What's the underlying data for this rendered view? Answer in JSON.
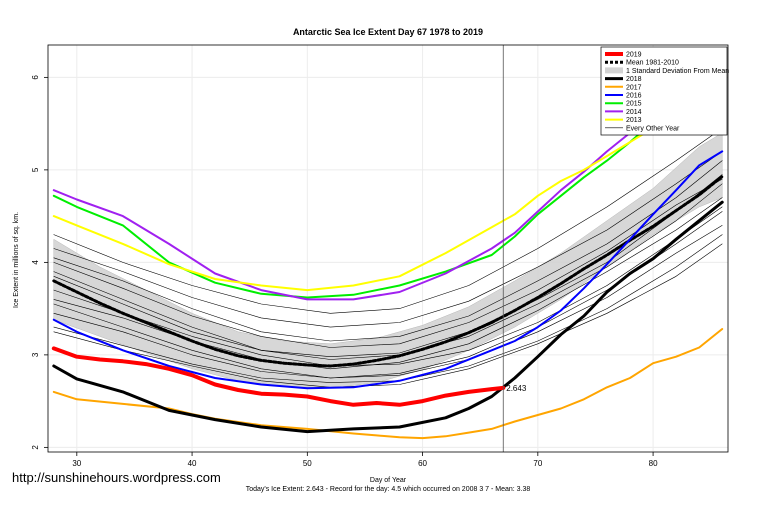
{
  "watermark": "http://sunshinehours.wordpress.com",
  "chart_data": {
    "type": "line",
    "title": "Antarctic Sea Ice Extent Day 67 1978 to 2019",
    "xlabel": "Day of Year",
    "ylabel": "Ice Extent in millions of sq. km.",
    "footer": "Today's Ice Extent: 2.643  - Record for the day: 4.5 which occurred on 2008 3 7  - Mean: 3.38",
    "xlim": [
      27.5,
      86.5
    ],
    "ylim": [
      1.95,
      6.35
    ],
    "x_ticks": [
      "30",
      "40",
      "50",
      "60",
      "70",
      "80"
    ],
    "y_ticks": [
      "2",
      "3",
      "4",
      "5",
      "6"
    ],
    "current_day": 67,
    "current_value_label": "2.643",
    "legend_position": "top-right",
    "legend": [
      {
        "label": "2019",
        "color": "#ff0000",
        "style": "solid",
        "width": 4
      },
      {
        "label": "Mean 1981-2010",
        "color": "#000000",
        "style": "dashed",
        "width": 3
      },
      {
        "label": "1 Standard Deviation From Mean",
        "color": "#d3d3d3",
        "style": "band",
        "width": 8
      },
      {
        "label": "2018",
        "color": "#000000",
        "style": "solid",
        "width": 3
      },
      {
        "label": "2017",
        "color": "#ffa500",
        "style": "solid",
        "width": 2
      },
      {
        "label": "2016",
        "color": "#0000ff",
        "style": "solid",
        "width": 2
      },
      {
        "label": "2015",
        "color": "#00ee00",
        "style": "solid",
        "width": 2
      },
      {
        "label": "2014",
        "color": "#a020f0",
        "style": "solid",
        "width": 2
      },
      {
        "label": "2013",
        "color": "#ffff00",
        "style": "solid",
        "width": 2
      },
      {
        "label": "Every Other Year",
        "color": "#000000",
        "style": "thin",
        "width": 0.6
      }
    ],
    "std_band": {
      "x": [
        28,
        32,
        36,
        40,
        44,
        48,
        52,
        56,
        60,
        64,
        68,
        72,
        76,
        80,
        84,
        86
      ],
      "upper": [
        4.25,
        3.95,
        3.7,
        3.45,
        3.25,
        3.15,
        3.12,
        3.18,
        3.32,
        3.52,
        3.8,
        4.1,
        4.45,
        4.8,
        5.25,
        5.4
      ],
      "lower": [
        3.38,
        3.2,
        3.02,
        2.85,
        2.72,
        2.66,
        2.64,
        2.7,
        2.84,
        3.05,
        3.3,
        3.6,
        3.95,
        4.3,
        4.6,
        4.7
      ]
    },
    "series": [
      {
        "name": "Every Other Year",
        "color": "#000000",
        "width": 0.6,
        "x": [
          28,
          34,
          40,
          46,
          52,
          58,
          64,
          70,
          76,
          82,
          86
        ],
        "y": [
          3.9,
          3.6,
          3.3,
          3.05,
          2.95,
          3.0,
          3.2,
          3.55,
          3.95,
          4.45,
          4.85
        ]
      },
      {
        "name": "Every Other Year",
        "color": "#000000",
        "width": 0.6,
        "x": [
          28,
          34,
          40,
          46,
          52,
          58,
          64,
          70,
          76,
          82,
          86
        ],
        "y": [
          3.55,
          3.3,
          3.05,
          2.85,
          2.75,
          2.8,
          2.98,
          3.3,
          3.7,
          4.2,
          4.55
        ]
      },
      {
        "name": "Every Other Year",
        "color": "#000000",
        "width": 0.6,
        "x": [
          28,
          34,
          40,
          46,
          52,
          58,
          64,
          70,
          76,
          82,
          86
        ],
        "y": [
          4.05,
          3.8,
          3.5,
          3.25,
          3.15,
          3.2,
          3.42,
          3.8,
          4.2,
          4.7,
          5.1
        ]
      },
      {
        "name": "Every Other Year",
        "color": "#000000",
        "width": 0.6,
        "x": [
          28,
          34,
          40,
          46,
          52,
          58,
          64,
          70,
          76,
          82,
          86
        ],
        "y": [
          3.3,
          3.1,
          2.9,
          2.75,
          2.7,
          2.72,
          2.88,
          3.15,
          3.5,
          3.95,
          4.3
        ]
      },
      {
        "name": "Every Other Year",
        "color": "#000000",
        "width": 0.6,
        "x": [
          28,
          34,
          40,
          46,
          52,
          58,
          64,
          70,
          76,
          82,
          86
        ],
        "y": [
          4.3,
          4.0,
          3.75,
          3.55,
          3.45,
          3.5,
          3.75,
          4.15,
          4.6,
          5.1,
          5.45
        ]
      },
      {
        "name": "Every Other Year",
        "color": "#000000",
        "width": 0.6,
        "x": [
          28,
          34,
          40,
          46,
          52,
          58,
          64,
          70,
          76,
          82,
          86
        ],
        "y": [
          3.7,
          3.45,
          3.2,
          3.0,
          2.88,
          2.9,
          3.05,
          3.35,
          3.75,
          4.25,
          4.6
        ]
      },
      {
        "name": "Every Other Year",
        "color": "#000000",
        "width": 0.6,
        "x": [
          28,
          34,
          40,
          46,
          52,
          58,
          64,
          70,
          76,
          82,
          86
        ],
        "y": [
          3.45,
          3.25,
          3.0,
          2.82,
          2.75,
          2.78,
          2.95,
          3.25,
          3.62,
          4.1,
          4.4
        ]
      },
      {
        "name": "Every Other Year",
        "color": "#000000",
        "width": 0.6,
        "x": [
          28,
          34,
          40,
          46,
          52,
          58,
          64,
          70,
          76,
          82,
          86
        ],
        "y": [
          4.15,
          3.9,
          3.62,
          3.4,
          3.3,
          3.35,
          3.58,
          3.95,
          4.35,
          4.85,
          5.2
        ]
      },
      {
        "name": "Every Other Year",
        "color": "#000000",
        "width": 0.6,
        "x": [
          28,
          34,
          40,
          46,
          52,
          58,
          64,
          70,
          76,
          82,
          86
        ],
        "y": [
          3.85,
          3.55,
          3.25,
          3.05,
          2.98,
          3.02,
          3.25,
          3.6,
          4.0,
          4.55,
          4.95
        ]
      },
      {
        "name": "Every Other Year",
        "color": "#000000",
        "width": 0.6,
        "x": [
          28,
          34,
          40,
          46,
          52,
          58,
          64,
          70,
          76,
          82,
          86
        ],
        "y": [
          3.25,
          3.05,
          2.88,
          2.72,
          2.65,
          2.68,
          2.85,
          3.12,
          3.45,
          3.85,
          4.2
        ]
      },
      {
        "name": "Every Other Year",
        "color": "#000000",
        "width": 0.6,
        "x": [
          28,
          34,
          40,
          46,
          52,
          58,
          64,
          70,
          76,
          82,
          86
        ],
        "y": [
          3.6,
          3.4,
          3.15,
          2.95,
          2.85,
          2.92,
          3.12,
          3.48,
          3.9,
          4.35,
          4.7
        ]
      },
      {
        "name": "Every Other Year",
        "color": "#000000",
        "width": 0.6,
        "x": [
          28,
          34,
          40,
          46,
          52,
          58,
          64,
          70,
          76,
          82,
          86
        ],
        "y": [
          4.0,
          3.72,
          3.42,
          3.2,
          3.08,
          3.12,
          3.35,
          3.7,
          4.12,
          4.62,
          4.9
        ]
      },
      {
        "name": "Mean 1981-2010",
        "color": "#000000",
        "width": 3,
        "dashed": true,
        "x": [
          28,
          30,
          32,
          34,
          36,
          38,
          40,
          42,
          44,
          46,
          48,
          50,
          52,
          54,
          56,
          58,
          60,
          62,
          64,
          66,
          68,
          70,
          72,
          74,
          76,
          78,
          80,
          82,
          84,
          86
        ],
        "y": [
          3.8,
          3.68,
          3.56,
          3.45,
          3.35,
          3.25,
          3.15,
          3.06,
          2.99,
          2.94,
          2.91,
          2.89,
          2.88,
          2.9,
          2.94,
          2.99,
          3.06,
          3.14,
          3.24,
          3.35,
          3.48,
          3.62,
          3.77,
          3.93,
          4.08,
          4.24,
          4.39,
          4.56,
          4.73,
          4.93
        ]
      },
      {
        "name": "2017",
        "color": "#ffa500",
        "width": 2,
        "x": [
          28,
          30,
          34,
          38,
          40,
          42,
          46,
          50,
          54,
          56,
          58,
          60,
          62,
          64,
          66,
          68,
          70,
          72,
          74,
          76,
          78,
          80,
          82,
          84,
          86
        ],
        "y": [
          2.6,
          2.52,
          2.47,
          2.42,
          2.36,
          2.31,
          2.24,
          2.2,
          2.15,
          2.13,
          2.11,
          2.1,
          2.12,
          2.16,
          2.2,
          2.28,
          2.35,
          2.42,
          2.52,
          2.65,
          2.75,
          2.91,
          2.98,
          3.08,
          3.28
        ]
      },
      {
        "name": "2018",
        "color": "#000000",
        "width": 3,
        "x": [
          28,
          30,
          34,
          38,
          42,
          46,
          50,
          54,
          58,
          62,
          64,
          66,
          68,
          70,
          72,
          74,
          76,
          78,
          80,
          82,
          84,
          86
        ],
        "y": [
          2.88,
          2.74,
          2.6,
          2.4,
          2.3,
          2.22,
          2.17,
          2.2,
          2.22,
          2.32,
          2.42,
          2.55,
          2.75,
          2.98,
          3.22,
          3.42,
          3.68,
          3.88,
          4.04,
          4.25,
          4.45,
          4.65
        ]
      },
      {
        "name": "2016",
        "color": "#0000ff",
        "width": 2,
        "x": [
          28,
          30,
          34,
          38,
          42,
          46,
          50,
          54,
          58,
          62,
          66,
          68,
          70,
          72,
          74,
          76,
          78,
          80,
          82,
          84,
          86
        ],
        "y": [
          3.38,
          3.25,
          3.05,
          2.88,
          2.75,
          2.68,
          2.64,
          2.65,
          2.72,
          2.85,
          3.05,
          3.15,
          3.3,
          3.48,
          3.72,
          3.98,
          4.25,
          4.52,
          4.78,
          5.05,
          5.2
        ]
      },
      {
        "name": "2015",
        "color": "#00ee00",
        "width": 2,
        "x": [
          28,
          30,
          34,
          38,
          42,
          46,
          50,
          54,
          58,
          62,
          66,
          68,
          70,
          72,
          74,
          76,
          78,
          80,
          82,
          84,
          86
        ],
        "y": [
          4.72,
          4.6,
          4.4,
          4.0,
          3.78,
          3.66,
          3.62,
          3.65,
          3.75,
          3.9,
          4.08,
          4.28,
          4.52,
          4.72,
          4.92,
          5.1,
          5.3,
          5.52,
          5.7,
          5.88,
          6.05
        ]
      },
      {
        "name": "2014",
        "color": "#a020f0",
        "width": 2,
        "x": [
          28,
          30,
          34,
          38,
          42,
          46,
          50,
          54,
          58,
          62,
          66,
          68,
          70,
          72,
          74,
          76,
          78,
          80,
          82,
          84,
          86
        ],
        "y": [
          4.78,
          4.68,
          4.5,
          4.2,
          3.88,
          3.7,
          3.6,
          3.6,
          3.68,
          3.88,
          4.15,
          4.32,
          4.55,
          4.78,
          4.98,
          5.2,
          5.4,
          5.6,
          5.78,
          5.95,
          6.0
        ]
      },
      {
        "name": "2013",
        "color": "#ffff00",
        "width": 2,
        "x": [
          28,
          30,
          34,
          38,
          42,
          46,
          50,
          54,
          58,
          62,
          66,
          68,
          70,
          72,
          74,
          76,
          78,
          80,
          82,
          84,
          86
        ],
        "y": [
          4.5,
          4.4,
          4.2,
          3.98,
          3.82,
          3.75,
          3.7,
          3.75,
          3.85,
          4.1,
          4.38,
          4.52,
          4.72,
          4.88,
          5.0,
          5.15,
          5.3,
          5.45,
          5.55,
          5.65,
          5.75
        ]
      },
      {
        "name": "2019",
        "color": "#ff0000",
        "width": 4,
        "x": [
          28,
          30,
          32,
          34,
          36,
          38,
          40,
          42,
          44,
          46,
          48,
          50,
          52,
          54,
          56,
          58,
          60,
          62,
          64,
          66,
          67
        ],
        "y": [
          3.07,
          2.98,
          2.95,
          2.93,
          2.9,
          2.85,
          2.78,
          2.68,
          2.62,
          2.58,
          2.57,
          2.55,
          2.5,
          2.46,
          2.48,
          2.46,
          2.5,
          2.56,
          2.6,
          2.63,
          2.643
        ]
      }
    ]
  }
}
